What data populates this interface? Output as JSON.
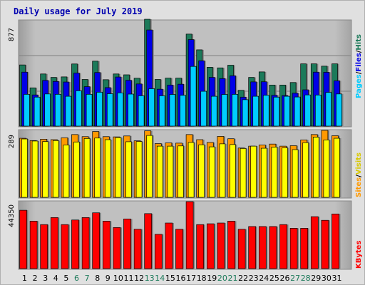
{
  "chart_data": [
    {
      "type": "bar",
      "title": "Daily usage for July 2019",
      "categories": [
        "1",
        "2",
        "3",
        "4",
        "5",
        "6",
        "7",
        "8",
        "9",
        "10",
        "11",
        "12",
        "13",
        "14",
        "15",
        "16",
        "17",
        "18",
        "19",
        "20",
        "21",
        "22",
        "23",
        "24",
        "25",
        "26",
        "27",
        "28",
        "29",
        "30",
        "31"
      ],
      "weekend_days": [
        "6",
        "7",
        "13",
        "14",
        "20",
        "21",
        "27",
        "28"
      ],
      "ymax_label": "877",
      "ylim": [
        0,
        877
      ],
      "grid": true,
      "series": [
        {
          "name": "Hits",
          "color": "#1c7a5a",
          "values": [
            502,
            314,
            428,
            400,
            404,
            510,
            383,
            533,
            381,
            428,
            421,
            393,
            877,
            383,
            394,
            394,
            755,
            626,
            483,
            478,
            500,
            294,
            400,
            445,
            337,
            337,
            358,
            511,
            511,
            492,
            511
          ]
        },
        {
          "name": "Files",
          "color": "#0000e8",
          "values": [
            443,
            256,
            375,
            367,
            362,
            435,
            324,
            440,
            316,
            403,
            376,
            346,
            789,
            303,
            337,
            344,
            710,
            536,
            400,
            390,
            413,
            238,
            363,
            364,
            253,
            251,
            270,
            298,
            443,
            442,
            372
          ]
        },
        {
          "name": "Pages",
          "color": "#00ccff",
          "values": [
            261,
            238,
            264,
            261,
            245,
            290,
            261,
            278,
            266,
            273,
            263,
            249,
            307,
            249,
            260,
            253,
            490,
            286,
            245,
            260,
            261,
            217,
            245,
            253,
            238,
            245,
            239,
            256,
            255,
            277,
            264
          ]
        }
      ]
    },
    {
      "type": "bar",
      "categories": [
        "1",
        "2",
        "3",
        "4",
        "5",
        "6",
        "7",
        "8",
        "9",
        "10",
        "11",
        "12",
        "13",
        "14",
        "15",
        "16",
        "17",
        "18",
        "19",
        "20",
        "21",
        "22",
        "23",
        "24",
        "25",
        "26",
        "27",
        "28",
        "29",
        "30",
        "31"
      ],
      "ymax_label": "289",
      "ylim": [
        0,
        289
      ],
      "series": [
        {
          "name": "Visits",
          "color": "#ffff00",
          "values": [
            252,
            243,
            241,
            245,
            226,
            239,
            254,
            256,
            249,
            258,
            240,
            241,
            267,
            221,
            221,
            222,
            237,
            227,
            218,
            231,
            228,
            211,
            221,
            212,
            217,
            214,
            206,
            236,
            260,
            248,
            255
          ]
        },
        {
          "name": "Sites",
          "color": "#ff9900",
          "values": [
            255,
            245,
            251,
            249,
            257,
            271,
            262,
            284,
            262,
            261,
            265,
            244,
            287,
            232,
            235,
            234,
            271,
            249,
            237,
            263,
            253,
            213,
            221,
            226,
            230,
            221,
            223,
            248,
            271,
            289,
            266
          ]
        }
      ]
    },
    {
      "type": "bar",
      "categories": [
        "1",
        "2",
        "3",
        "4",
        "5",
        "6",
        "7",
        "8",
        "9",
        "10",
        "11",
        "12",
        "13",
        "14",
        "15",
        "16",
        "17",
        "18",
        "19",
        "20",
        "21",
        "22",
        "23",
        "24",
        "25",
        "26",
        "27",
        "28",
        "29",
        "30",
        "31"
      ],
      "ymax_label": "44350",
      "ylim": [
        0,
        44350
      ],
      "series": [
        {
          "name": "KBytes",
          "color": "#ff0000",
          "values": [
            38640,
            31440,
            29150,
            33810,
            29150,
            32200,
            33810,
            36950,
            31440,
            27210,
            32890,
            26070,
            36400,
            22700,
            30190,
            26070,
            44350,
            29150,
            29690,
            30190,
            31440,
            26070,
            27870,
            27870,
            27870,
            29150,
            26720,
            26720,
            34400,
            31990,
            36190
          ]
        }
      ]
    }
  ]
}
